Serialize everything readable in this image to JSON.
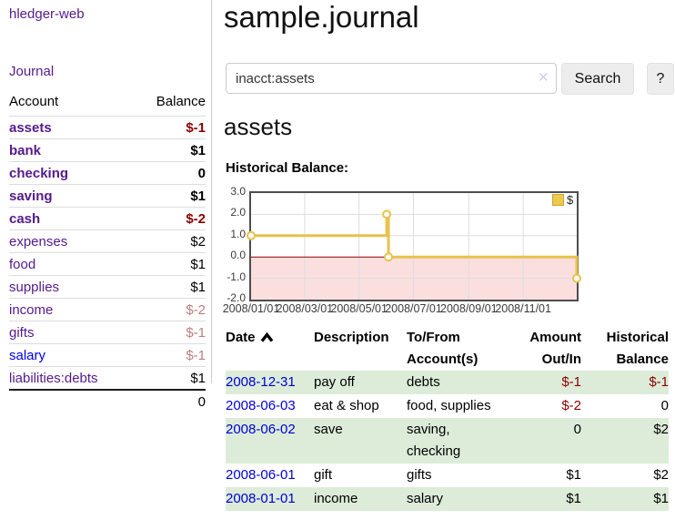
{
  "app": {
    "title": "hledger-web"
  },
  "sidebar": {
    "journal_label": "Journal",
    "headers": [
      "Account",
      "Balance"
    ],
    "accounts": [
      {
        "name": "assets",
        "indent": 1,
        "bold": true,
        "balance": "$-1",
        "negative": "strong"
      },
      {
        "name": "bank",
        "indent": 2,
        "bold": true,
        "balance": "$1"
      },
      {
        "name": "checking",
        "indent": 3,
        "bold": true,
        "balance": "0"
      },
      {
        "name": "saving",
        "indent": 3,
        "bold": true,
        "balance": "$1"
      },
      {
        "name": "cash",
        "indent": 2,
        "bold": true,
        "balance": "$-2",
        "negative": "strong"
      },
      {
        "name": "expenses",
        "indent": 1,
        "balance": "$2"
      },
      {
        "name": "food",
        "indent": 2,
        "balance": "$1"
      },
      {
        "name": "supplies",
        "indent": 2,
        "balance": "$1"
      },
      {
        "name": "income",
        "indent": 1,
        "balance": "$-2",
        "negative": "soft"
      },
      {
        "name": "gifts",
        "indent": 2,
        "balance": "$-1",
        "negative": "soft"
      },
      {
        "name": "salary",
        "indent": 2,
        "balance": "$-1",
        "negative": "soft",
        "link": "new"
      },
      {
        "name": "liabilities:debts",
        "indent": 1,
        "balance": "$1"
      }
    ],
    "total": "0"
  },
  "header": {
    "title": "sample.journal"
  },
  "search": {
    "value": "inacct:assets",
    "clear_glyph": "✕",
    "button_label": "Search",
    "help_label": "?"
  },
  "account_page": {
    "heading": "assets",
    "chart_label": "Historical Balance:"
  },
  "chart_data": {
    "type": "line",
    "step": true,
    "title": "Historical Balance:",
    "x_domain": [
      "2008-01-01",
      "2008-12-31"
    ],
    "ylim": [
      -2,
      3
    ],
    "yticks": [
      3,
      2,
      1,
      0,
      -1,
      -2
    ],
    "xticks": [
      "2008/01/01",
      "2008/03/01",
      "2008/05/01",
      "2008/07/01",
      "2008/09/01",
      "2008/11/01"
    ],
    "series": [
      {
        "name": "$",
        "color": "#e8c24b",
        "points": [
          [
            "2008-01-01",
            1
          ],
          [
            "2008-06-01",
            2
          ],
          [
            "2008-06-02",
            2
          ],
          [
            "2008-06-03",
            0
          ],
          [
            "2008-12-31",
            -1
          ]
        ]
      }
    ],
    "legend_position": "top-right",
    "grid": true,
    "colors": {
      "grid": "#dddddd",
      "zero_line": "#8b0000",
      "negative_region": "#fbdede",
      "marker_fill": "#ffffff",
      "border": "#4d4d4d"
    }
  },
  "register": {
    "columns": [
      "Date",
      "Description",
      "To/From Account(s)",
      "Amount Out/In",
      "Historical Balance"
    ],
    "sort": {
      "column": "Date",
      "direction": "ascending"
    },
    "rows": [
      {
        "date": "2008-12-31",
        "description": "pay off",
        "accounts": "debts",
        "amount": "$-1",
        "amount_negative": true,
        "balance": "$-1",
        "balance_negative": true
      },
      {
        "date": "2008-06-03",
        "description": "eat & shop",
        "accounts": "food, supplies",
        "amount": "$-2",
        "amount_negative": true,
        "balance": "0"
      },
      {
        "date": "2008-06-02",
        "description": "save",
        "accounts": "saving, checking",
        "amount": "0",
        "balance": "$2"
      },
      {
        "date": "2008-06-01",
        "description": "gift",
        "accounts": "gifts",
        "amount": "$1",
        "balance": "$2"
      },
      {
        "date": "2008-01-01",
        "description": "income",
        "accounts": "salary",
        "amount": "$1",
        "balance": "$1"
      }
    ]
  }
}
